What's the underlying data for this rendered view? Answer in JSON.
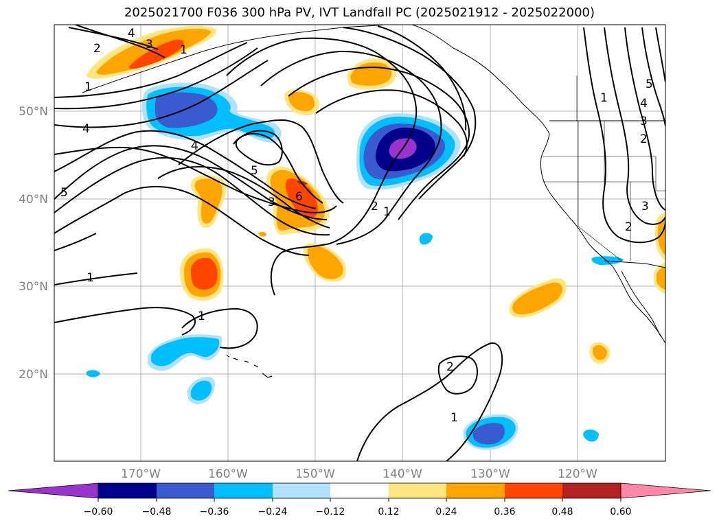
{
  "title": "2025021700 F036 300 hPa PV, IVT Landfall PC (2025021912 - 2025022000)",
  "map": {
    "lat_labels": [
      "50°N",
      "40°N",
      "30°N",
      "20°N"
    ],
    "lon_labels": [
      "170°W",
      "160°W",
      "150°W",
      "140°W",
      "130°W",
      "120°W"
    ],
    "colors": {
      "neg_extend": "#9933cc",
      "neg_060": "#00008b",
      "neg_048": "#3a5bd0",
      "neg_036": "#00bfff",
      "neg_024": "#b0e2ff",
      "pos_012": "#ffe680",
      "pos_024": "#ffa500",
      "pos_036": "#ff4500",
      "pos_048": "#b22222",
      "pos_extend": "#ff88aa",
      "grid": "#b0b0b0",
      "contour": "#000000"
    },
    "contour_labels": [
      {
        "text": "4"
      },
      {
        "text": "3"
      },
      {
        "text": "2"
      },
      {
        "text": "1"
      },
      {
        "text": "1"
      },
      {
        "text": "4"
      },
      {
        "text": "4"
      },
      {
        "text": "5"
      },
      {
        "text": "3"
      },
      {
        "text": "6"
      },
      {
        "text": "2"
      },
      {
        "text": "1"
      },
      {
        "text": "1"
      },
      {
        "text": "1"
      },
      {
        "text": "2"
      },
      {
        "text": "1"
      },
      {
        "text": "5"
      },
      {
        "text": "4"
      },
      {
        "text": "3"
      },
      {
        "text": "2"
      },
      {
        "text": "1"
      },
      {
        "text": "3"
      },
      {
        "text": "2"
      },
      {
        "text": "5"
      }
    ]
  },
  "colorbar": {
    "ticks": [
      "−0.60",
      "−0.48",
      "−0.36",
      "−0.24",
      "−0.12",
      "0.12",
      "0.24",
      "0.36",
      "0.48",
      "0.60"
    ],
    "colors": [
      "#9933cc",
      "#00008b",
      "#3a5bd0",
      "#00bfff",
      "#b0e2ff",
      "#ffffff",
      "#ffe680",
      "#ffa500",
      "#ff4500",
      "#b22222",
      "#ff88aa"
    ]
  }
}
